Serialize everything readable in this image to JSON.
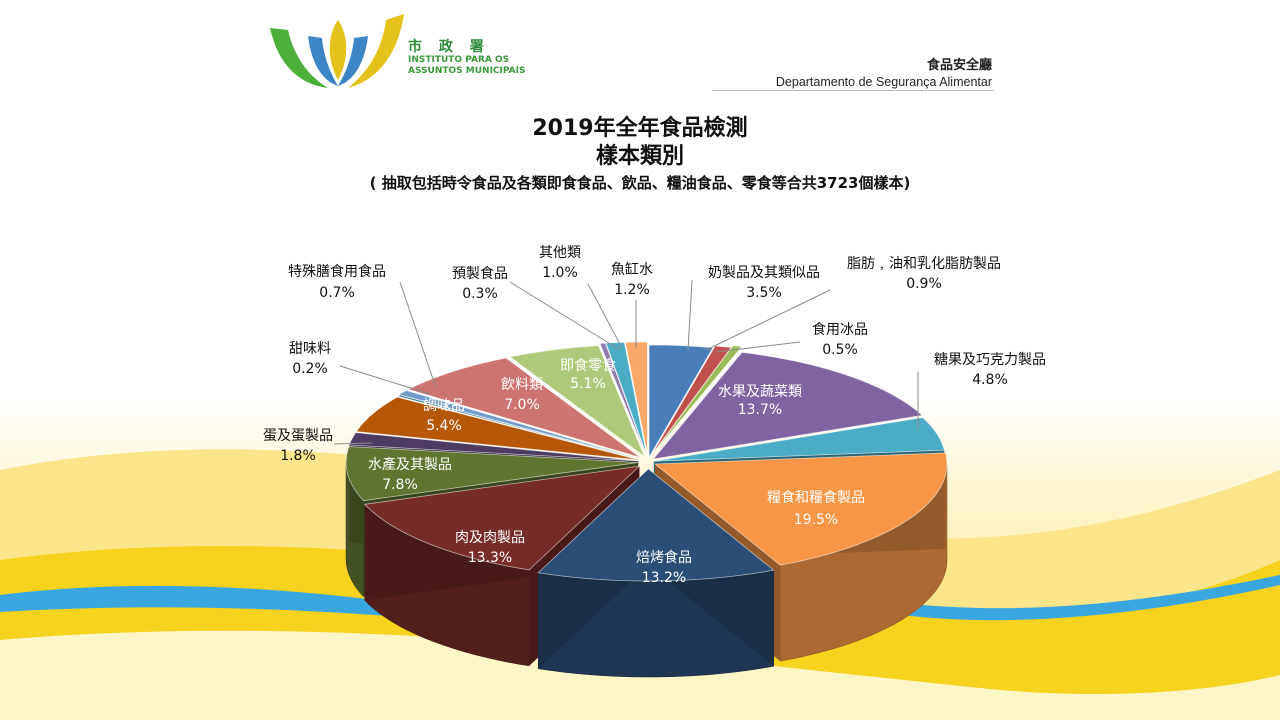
{
  "header": {
    "org_zh": "市 政 署",
    "org_pt_line1": "INSTITUTO PARA OS",
    "org_pt_line2": "ASSUNTOS MUNICIPAIS",
    "dept_zh": "食品安全廳",
    "dept_pt": "Departamento de Segurança Alimentar"
  },
  "colors": {
    "logo_green": "#4caf3a",
    "logo_yellow": "#e5c21b",
    "logo_blue": "#3d86c6",
    "wave_yellow": "#f7d21e",
    "wave_blue": "#3aa6e0"
  },
  "chart_data": {
    "type": "pie",
    "title": "2019年全年食品檢測",
    "subtitle": "樣本類別",
    "note": "( 抽取包括時令食品及各類即食食品、飲品、糧油食品、零食等合共3723個樣本)",
    "slices": [
      {
        "label": "奶製品及其類似品",
        "value": 3.5,
        "value_label": "3.5%",
        "color": "#4a7ebb"
      },
      {
        "label": "脂肪﹐油和乳化脂肪製品",
        "value": 0.9,
        "value_label": "0.9%",
        "color": "#c0504d"
      },
      {
        "label": "食用冰品",
        "value": 0.5,
        "value_label": "0.5%",
        "color": "#9bbb59"
      },
      {
        "label": "水果及蔬菜類",
        "value": 13.7,
        "value_label": "13.7%",
        "color": "#8064a2"
      },
      {
        "label": "糖果及巧克力製品",
        "value": 4.8,
        "value_label": "4.8%",
        "color": "#4bacc6"
      },
      {
        "label": "糧食和糧食製品",
        "value": 19.5,
        "value_label": "19.5%",
        "color": "#f79646"
      },
      {
        "label": "焙烤食品",
        "value": 13.2,
        "value_label": "13.2%",
        "color": "#2c4d75"
      },
      {
        "label": "肉及肉製品",
        "value": 13.3,
        "value_label": "13.3%",
        "color": "#772c2a"
      },
      {
        "label": "水產及其製品",
        "value": 7.8,
        "value_label": "7.8%",
        "color": "#5f7530"
      },
      {
        "label": "蛋及蛋製品",
        "value": 1.8,
        "value_label": "1.8%",
        "color": "#4d3b62"
      },
      {
        "label": "調味品",
        "value": 5.4,
        "value_label": "5.4%",
        "color": "#b65708"
      },
      {
        "label": "甜味料",
        "value": 0.2,
        "value_label": "0.2%",
        "color": "#276a7c"
      },
      {
        "label": "特殊膳食用食品",
        "value": 0.7,
        "value_label": "0.7%",
        "color": "#729aca"
      },
      {
        "label": "飲料類",
        "value": 7.0,
        "value_label": "7.0%",
        "color": "#cd7371"
      },
      {
        "label": "即食零食",
        "value": 5.1,
        "value_label": "5.1%",
        "color": "#afc97a"
      },
      {
        "label": "預製食品",
        "value": 0.3,
        "value_label": "0.3%",
        "color": "#8e7cac"
      },
      {
        "label": "其他類",
        "value": 1.0,
        "value_label": "1.0%",
        "color": "#4bacc6"
      },
      {
        "label": "魚缸水",
        "value": 1.2,
        "value_label": "1.2%",
        "color": "#f9a867"
      }
    ]
  }
}
